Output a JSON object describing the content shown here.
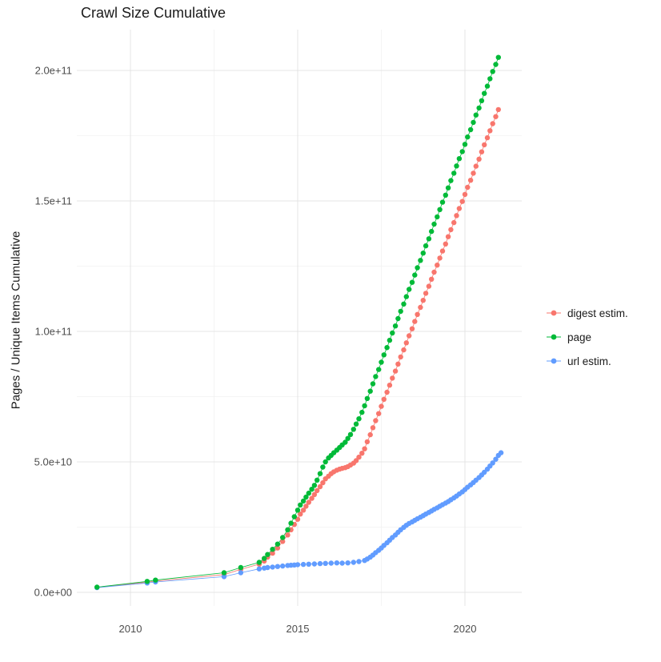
{
  "chart_data": {
    "type": "scatter",
    "show_lines": true,
    "title": "Crawl Size Cumulative",
    "xlabel": "",
    "ylabel": "Pages / Unique Items Cumulative",
    "y_value_scale": "values stored in billions (1e9); axis labels shown in scientific notation",
    "xlim": [
      2008.4,
      2021.75
    ],
    "ylim": [
      -10,
      216
    ],
    "grid": true,
    "legend_position": "right",
    "background": "#ffffff",
    "grid_major_color": "#e4e4e4",
    "grid_minor_color": "#f2f2f2",
    "tick_label_color": "#4d4d4d",
    "text_color": "#1a1a1a",
    "x_ticks": [
      {
        "value": 2010,
        "label": "2010"
      },
      {
        "value": 2015,
        "label": "2015"
      },
      {
        "value": 2020,
        "label": "2020"
      }
    ],
    "x_minor_gridlines": [
      2012.5,
      2017.5
    ],
    "y_ticks": [
      {
        "value": 0,
        "label": "0.0e+00"
      },
      {
        "value": 50,
        "label": "5.0e+10"
      },
      {
        "value": 100,
        "label": "1.0e+11"
      },
      {
        "value": 150,
        "label": "1.5e+11"
      },
      {
        "value": 200,
        "label": "2.0e+11"
      }
    ],
    "y_minor_gridlines": [
      25,
      75,
      125,
      175
    ],
    "series": [
      {
        "name": "digest estim.",
        "color": "#F8766D",
        "points": [
          [
            2009.0,
            1.9
          ],
          [
            2010.5,
            3.9
          ],
          [
            2010.75,
            4.3
          ],
          [
            2012.8,
            6.8
          ],
          [
            2013.3,
            8.8
          ],
          [
            2013.85,
            10.8
          ],
          [
            2014.0,
            12.0
          ],
          [
            2014.1,
            13.5
          ],
          [
            2014.25,
            15.0
          ],
          [
            2014.4,
            17.0
          ],
          [
            2014.55,
            19.5
          ],
          [
            2014.7,
            22.0
          ],
          [
            2014.8,
            24.0
          ],
          [
            2014.9,
            26.0
          ],
          [
            2015.0,
            28.0
          ],
          [
            2015.08,
            30.0
          ],
          [
            2015.17,
            31.5
          ],
          [
            2015.25,
            33.0
          ],
          [
            2015.33,
            34.5
          ],
          [
            2015.42,
            36.0
          ],
          [
            2015.5,
            37.5
          ],
          [
            2015.58,
            39.0
          ],
          [
            2015.67,
            40.5
          ],
          [
            2015.75,
            42.0
          ],
          [
            2015.83,
            43.5
          ],
          [
            2015.92,
            44.5
          ],
          [
            2016.0,
            45.5
          ],
          [
            2016.08,
            46.2
          ],
          [
            2016.17,
            46.8
          ],
          [
            2016.25,
            47.2
          ],
          [
            2016.33,
            47.5
          ],
          [
            2016.42,
            47.8
          ],
          [
            2016.5,
            48.2
          ],
          [
            2016.58,
            48.8
          ],
          [
            2016.67,
            49.5
          ],
          [
            2016.75,
            50.5
          ],
          [
            2016.83,
            51.8
          ],
          [
            2016.92,
            53.3
          ],
          [
            2017.0,
            55.0
          ],
          [
            2017.08,
            57.7
          ],
          [
            2017.17,
            60.4
          ],
          [
            2017.25,
            63.1
          ],
          [
            2017.33,
            65.8
          ],
          [
            2017.42,
            68.5
          ],
          [
            2017.5,
            71.3
          ],
          [
            2017.58,
            74.0
          ],
          [
            2017.67,
            76.7
          ],
          [
            2017.75,
            79.4
          ],
          [
            2017.83,
            82.1
          ],
          [
            2017.92,
            84.8
          ],
          [
            2018.0,
            87.5
          ],
          [
            2018.08,
            90.2
          ],
          [
            2018.17,
            92.9
          ],
          [
            2018.25,
            95.6
          ],
          [
            2018.33,
            98.3
          ],
          [
            2018.42,
            101.0
          ],
          [
            2018.5,
            103.8
          ],
          [
            2018.58,
            106.5
          ],
          [
            2018.67,
            109.2
          ],
          [
            2018.75,
            111.9
          ],
          [
            2018.83,
            114.6
          ],
          [
            2018.92,
            117.3
          ],
          [
            2019.0,
            120.0
          ],
          [
            2019.08,
            122.7
          ],
          [
            2019.17,
            125.4
          ],
          [
            2019.25,
            128.1
          ],
          [
            2019.33,
            130.8
          ],
          [
            2019.42,
            133.5
          ],
          [
            2019.5,
            136.3
          ],
          [
            2019.58,
            139.0
          ],
          [
            2019.67,
            141.7
          ],
          [
            2019.75,
            144.4
          ],
          [
            2019.83,
            147.1
          ],
          [
            2019.92,
            149.8
          ],
          [
            2020.0,
            152.5
          ],
          [
            2020.08,
            155.2
          ],
          [
            2020.17,
            157.9
          ],
          [
            2020.25,
            160.6
          ],
          [
            2020.33,
            163.3
          ],
          [
            2020.42,
            166.0
          ],
          [
            2020.5,
            168.8
          ],
          [
            2020.58,
            171.5
          ],
          [
            2020.67,
            174.2
          ],
          [
            2020.75,
            176.9
          ],
          [
            2020.83,
            179.6
          ],
          [
            2020.92,
            182.3
          ],
          [
            2021.0,
            185.0
          ]
        ]
      },
      {
        "name": "page",
        "color": "#00BA38",
        "points": [
          [
            2009.0,
            2.0
          ],
          [
            2010.5,
            4.2
          ],
          [
            2010.75,
            4.7
          ],
          [
            2012.8,
            7.5
          ],
          [
            2013.3,
            9.5
          ],
          [
            2013.85,
            11.5
          ],
          [
            2014.0,
            13.0
          ],
          [
            2014.1,
            14.5
          ],
          [
            2014.25,
            16.5
          ],
          [
            2014.4,
            18.5
          ],
          [
            2014.55,
            21.0
          ],
          [
            2014.7,
            24.0
          ],
          [
            2014.8,
            26.5
          ],
          [
            2014.9,
            29.0
          ],
          [
            2015.0,
            31.5
          ],
          [
            2015.08,
            33.5
          ],
          [
            2015.17,
            35.0
          ],
          [
            2015.25,
            36.5
          ],
          [
            2015.33,
            38.0
          ],
          [
            2015.42,
            39.5
          ],
          [
            2015.5,
            41.0
          ],
          [
            2015.58,
            43.0
          ],
          [
            2015.67,
            45.5
          ],
          [
            2015.75,
            48.0
          ],
          [
            2015.83,
            50.0
          ],
          [
            2015.92,
            51.5
          ],
          [
            2016.0,
            52.5
          ],
          [
            2016.08,
            53.5
          ],
          [
            2016.17,
            54.5
          ],
          [
            2016.25,
            55.5
          ],
          [
            2016.33,
            56.5
          ],
          [
            2016.42,
            57.5
          ],
          [
            2016.5,
            59.0
          ],
          [
            2016.58,
            60.5
          ],
          [
            2016.67,
            62.5
          ],
          [
            2016.75,
            64.5
          ],
          [
            2016.83,
            66.5
          ],
          [
            2016.92,
            69.0
          ],
          [
            2017.0,
            71.5
          ],
          [
            2017.08,
            74.3
          ],
          [
            2017.17,
            77.1
          ],
          [
            2017.25,
            79.9
          ],
          [
            2017.33,
            82.7
          ],
          [
            2017.42,
            85.4
          ],
          [
            2017.5,
            88.2
          ],
          [
            2017.58,
            91.0
          ],
          [
            2017.67,
            93.8
          ],
          [
            2017.75,
            96.6
          ],
          [
            2017.83,
            99.4
          ],
          [
            2017.92,
            102.1
          ],
          [
            2018.0,
            104.9
          ],
          [
            2018.08,
            107.7
          ],
          [
            2018.17,
            110.5
          ],
          [
            2018.25,
            113.3
          ],
          [
            2018.33,
            116.1
          ],
          [
            2018.42,
            118.8
          ],
          [
            2018.5,
            121.6
          ],
          [
            2018.58,
            124.4
          ],
          [
            2018.67,
            127.2
          ],
          [
            2018.75,
            130.0
          ],
          [
            2018.83,
            132.8
          ],
          [
            2018.92,
            135.5
          ],
          [
            2019.0,
            138.3
          ],
          [
            2019.08,
            141.1
          ],
          [
            2019.17,
            143.9
          ],
          [
            2019.25,
            146.7
          ],
          [
            2019.33,
            149.5
          ],
          [
            2019.42,
            152.2
          ],
          [
            2019.5,
            155.0
          ],
          [
            2019.58,
            157.8
          ],
          [
            2019.67,
            160.6
          ],
          [
            2019.75,
            163.4
          ],
          [
            2019.83,
            166.2
          ],
          [
            2019.92,
            168.9
          ],
          [
            2020.0,
            171.7
          ],
          [
            2020.08,
            174.5
          ],
          [
            2020.17,
            177.3
          ],
          [
            2020.25,
            180.1
          ],
          [
            2020.33,
            182.9
          ],
          [
            2020.42,
            185.6
          ],
          [
            2020.5,
            188.4
          ],
          [
            2020.58,
            191.2
          ],
          [
            2020.67,
            194.0
          ],
          [
            2020.75,
            196.8
          ],
          [
            2020.83,
            199.6
          ],
          [
            2020.92,
            202.3
          ],
          [
            2021.0,
            205.0
          ]
        ]
      },
      {
        "name": "url estim.",
        "color": "#619CFF",
        "points": [
          [
            2009.0,
            1.8
          ],
          [
            2010.5,
            3.6
          ],
          [
            2010.75,
            4.0
          ],
          [
            2012.8,
            6.0
          ],
          [
            2013.3,
            7.5
          ],
          [
            2013.85,
            9.0
          ],
          [
            2014.0,
            9.3
          ],
          [
            2014.1,
            9.5
          ],
          [
            2014.25,
            9.7
          ],
          [
            2014.4,
            9.9
          ],
          [
            2014.55,
            10.1
          ],
          [
            2014.7,
            10.3
          ],
          [
            2014.8,
            10.4
          ],
          [
            2014.9,
            10.5
          ],
          [
            2015.0,
            10.6
          ],
          [
            2015.17,
            10.7
          ],
          [
            2015.33,
            10.8
          ],
          [
            2015.5,
            10.9
          ],
          [
            2015.67,
            11.0
          ],
          [
            2015.83,
            11.1
          ],
          [
            2016.0,
            11.2
          ],
          [
            2016.17,
            11.3
          ],
          [
            2016.33,
            11.2
          ],
          [
            2016.5,
            11.3
          ],
          [
            2016.67,
            11.5
          ],
          [
            2016.83,
            11.8
          ],
          [
            2017.0,
            12.2
          ],
          [
            2017.08,
            12.8
          ],
          [
            2017.17,
            13.5
          ],
          [
            2017.25,
            14.3
          ],
          [
            2017.33,
            15.2
          ],
          [
            2017.42,
            16.1
          ],
          [
            2017.5,
            17.0
          ],
          [
            2017.58,
            18.0
          ],
          [
            2017.67,
            19.0
          ],
          [
            2017.75,
            20.0
          ],
          [
            2017.83,
            21.0
          ],
          [
            2017.92,
            22.0
          ],
          [
            2018.0,
            23.0
          ],
          [
            2018.08,
            24.0
          ],
          [
            2018.17,
            24.9
          ],
          [
            2018.25,
            25.7
          ],
          [
            2018.33,
            26.4
          ],
          [
            2018.42,
            27.0
          ],
          [
            2018.5,
            27.6
          ],
          [
            2018.58,
            28.2
          ],
          [
            2018.67,
            28.8
          ],
          [
            2018.75,
            29.4
          ],
          [
            2018.83,
            30.0
          ],
          [
            2018.92,
            30.6
          ],
          [
            2019.0,
            31.2
          ],
          [
            2019.08,
            31.8
          ],
          [
            2019.17,
            32.4
          ],
          [
            2019.25,
            33.0
          ],
          [
            2019.33,
            33.6
          ],
          [
            2019.42,
            34.2
          ],
          [
            2019.5,
            34.8
          ],
          [
            2019.58,
            35.5
          ],
          [
            2019.67,
            36.2
          ],
          [
            2019.75,
            36.9
          ],
          [
            2019.83,
            37.7
          ],
          [
            2019.92,
            38.5
          ],
          [
            2020.0,
            39.4
          ],
          [
            2020.08,
            40.3
          ],
          [
            2020.17,
            41.2
          ],
          [
            2020.25,
            42.1
          ],
          [
            2020.33,
            43.0
          ],
          [
            2020.42,
            44.0
          ],
          [
            2020.5,
            45.0
          ],
          [
            2020.58,
            46.0
          ],
          [
            2020.67,
            47.2
          ],
          [
            2020.75,
            48.4
          ],
          [
            2020.83,
            49.6
          ],
          [
            2020.92,
            51.0
          ],
          [
            2021.0,
            52.5
          ],
          [
            2021.08,
            53.5
          ]
        ]
      }
    ]
  }
}
